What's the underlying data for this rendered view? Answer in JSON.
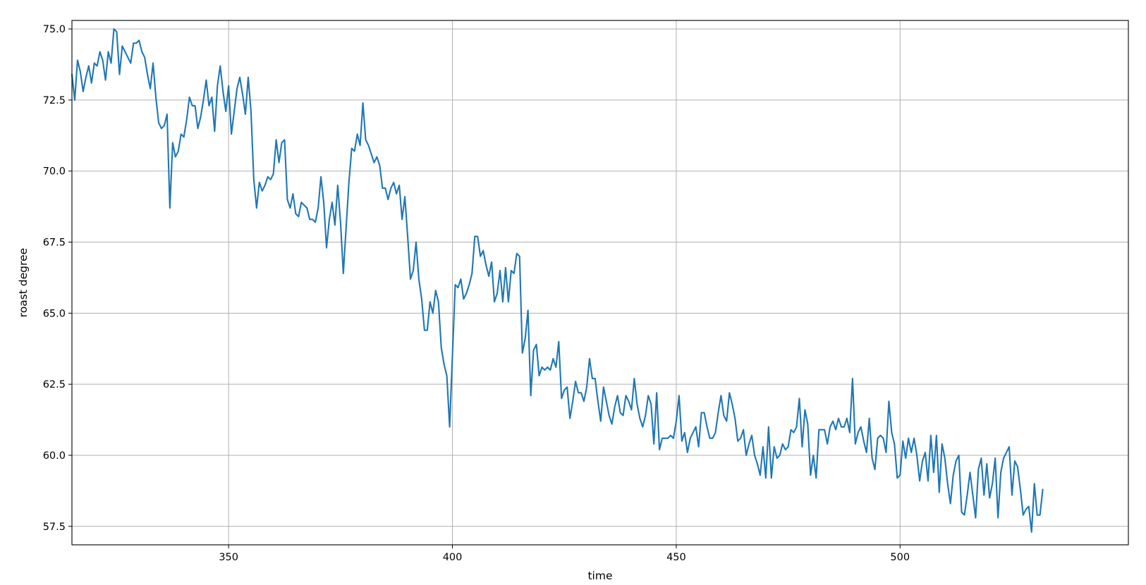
{
  "chart_data": {
    "type": "line",
    "title": "",
    "xlabel": "time",
    "ylabel": "roast degree",
    "xlim": [
      315,
      551
    ],
    "ylim": [
      56.85,
      75.3
    ],
    "xticks": [
      350,
      400,
      450,
      500
    ],
    "xtick_labels": [
      "350",
      "400",
      "450",
      "500"
    ],
    "yticks": [
      57.5,
      60.0,
      62.5,
      65.0,
      67.5,
      70.0,
      72.5,
      75.0
    ],
    "ytick_labels": [
      "57.5",
      "60.0",
      "62.5",
      "65.0",
      "67.5",
      "70.0",
      "72.5",
      "75.0"
    ],
    "grid": true,
    "legend": "none",
    "line_color": "#1f77b4",
    "x_start": 315,
    "x_step": 0.625,
    "values": [
      73.4,
      72.5,
      73.9,
      73.5,
      72.8,
      73.3,
      73.7,
      73.1,
      73.8,
      73.7,
      74.2,
      73.9,
      73.2,
      74.2,
      73.8,
      75.0,
      74.9,
      73.4,
      74.4,
      74.2,
      74.0,
      73.8,
      74.5,
      74.5,
      74.6,
      74.2,
      74.0,
      73.4,
      72.9,
      73.8,
      72.6,
      71.7,
      71.5,
      71.6,
      72.0,
      68.7,
      71.0,
      70.5,
      70.7,
      71.3,
      71.2,
      71.8,
      72.6,
      72.3,
      72.3,
      71.5,
      71.9,
      72.5,
      73.2,
      72.3,
      72.6,
      71.4,
      73.0,
      73.7,
      72.8,
      72.1,
      73.0,
      71.3,
      72.1,
      72.9,
      73.3,
      72.7,
      72.0,
      73.3,
      72.1,
      69.7,
      68.7,
      69.6,
      69.3,
      69.5,
      69.8,
      69.7,
      69.9,
      71.1,
      70.3,
      71.0,
      71.1,
      69.0,
      68.7,
      69.2,
      68.5,
      68.4,
      68.9,
      68.8,
      68.7,
      68.3,
      68.3,
      68.2,
      68.7,
      69.8,
      68.9,
      67.3,
      68.3,
      68.9,
      68.1,
      69.5,
      68.2,
      66.4,
      68.0,
      69.6,
      70.8,
      70.7,
      71.3,
      70.9,
      72.4,
      71.1,
      70.9,
      70.6,
      70.3,
      70.5,
      70.2,
      69.4,
      69.4,
      69.0,
      69.4,
      69.6,
      69.2,
      69.5,
      68.3,
      69.1,
      67.7,
      66.2,
      66.5,
      67.5,
      66.2,
      65.5,
      64.4,
      64.4,
      65.4,
      65.0,
      65.8,
      65.4,
      63.8,
      63.2,
      62.8,
      61.0,
      63.5,
      66.0,
      65.9,
      66.2,
      65.5,
      65.7,
      66.0,
      66.4,
      67.7,
      67.7,
      67.0,
      67.2,
      66.7,
      66.3,
      66.8,
      65.4,
      65.7,
      66.5,
      65.4,
      66.6,
      65.4,
      66.5,
      66.4,
      67.1,
      67.0,
      63.6,
      64.1,
      65.1,
      62.1,
      63.7,
      63.9,
      62.8,
      63.1,
      63.0,
      63.1,
      63.0,
      63.4,
      63.1,
      64.0,
      62.0,
      62.3,
      62.4,
      61.3,
      61.9,
      62.6,
      62.2,
      62.2,
      61.9,
      62.4,
      63.4,
      62.7,
      62.7,
      61.9,
      61.2,
      62.4,
      61.9,
      61.4,
      61.1,
      61.7,
      62.1,
      61.5,
      61.4,
      62.1,
      61.9,
      61.6,
      62.7,
      61.8,
      61.3,
      61.0,
      61.4,
      62.1,
      61.8,
      60.4,
      62.2,
      60.2,
      60.6,
      60.6,
      60.6,
      60.7,
      60.6,
      61.2,
      62.1,
      60.5,
      60.8,
      60.1,
      60.6,
      60.8,
      61.0,
      60.3,
      61.5,
      61.5,
      61.0,
      60.6,
      60.6,
      60.8,
      61.5,
      62.1,
      61.4,
      61.2,
      62.2,
      61.8,
      61.3,
      60.5,
      60.6,
      60.9,
      60.0,
      60.4,
      60.7,
      60.0,
      59.7,
      59.3,
      60.3,
      59.2,
      61.0,
      59.2,
      60.3,
      59.9,
      60.0,
      60.4,
      60.2,
      60.3,
      60.9,
      60.8,
      61.0,
      62.0,
      60.3,
      61.6,
      61.1,
      59.3,
      60.0,
      59.2,
      60.9,
      60.9,
      60.9,
      60.4,
      61.0,
      61.2,
      60.9,
      61.3,
      61.0,
      61.0,
      61.3,
      60.8,
      62.7,
      60.4,
      60.8,
      61.0,
      60.5,
      60.1,
      61.3,
      59.9,
      59.5,
      60.6,
      60.7,
      60.6,
      60.1,
      61.9,
      60.8,
      60.4,
      59.2,
      59.3,
      60.5,
      59.9,
      60.6,
      60.1,
      60.6,
      60.0,
      59.1,
      59.8,
      60.1,
      59.1,
      60.7,
      59.4,
      60.7,
      58.7,
      60.4,
      59.9,
      59.0,
      58.3,
      59.3,
      59.8,
      60.0,
      58.0,
      57.9,
      58.6,
      59.4,
      58.6,
      57.8,
      59.5,
      59.9,
      58.6,
      59.7,
      58.5,
      59.0,
      59.9,
      57.8,
      59.4,
      59.9,
      60.1,
      60.3,
      58.6,
      59.8,
      59.6,
      58.8,
      57.9,
      58.1,
      58.2,
      57.3,
      59.0,
      57.9,
      57.9,
      58.8
    ]
  }
}
